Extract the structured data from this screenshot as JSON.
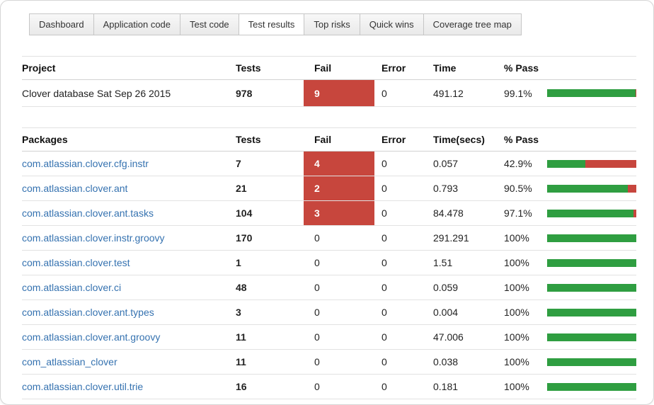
{
  "tabs": [
    {
      "label": "Dashboard"
    },
    {
      "label": "Application code"
    },
    {
      "label": "Test code"
    },
    {
      "label": "Test results"
    },
    {
      "label": "Top risks"
    },
    {
      "label": "Quick wins"
    },
    {
      "label": "Coverage tree map"
    }
  ],
  "active_tab": "Test results",
  "project_table": {
    "headers": {
      "name": "Project",
      "tests": "Tests",
      "fail": "Fail",
      "error": "Error",
      "time": "Time",
      "pass": "% Pass"
    },
    "rows": [
      {
        "name": "Clover database Sat Sep 26 2015",
        "tests": "978",
        "fail": "9",
        "error": "0",
        "time": "491.12",
        "pass": "99.1%",
        "pass_value": 99.1
      }
    ]
  },
  "packages_table": {
    "headers": {
      "name": "Packages",
      "tests": "Tests",
      "fail": "Fail",
      "error": "Error",
      "time": "Time(secs)",
      "pass": "% Pass"
    },
    "rows": [
      {
        "name": "com.atlassian.clover.cfg.instr",
        "tests": "7",
        "fail": "4",
        "error": "0",
        "time": "0.057",
        "pass": "42.9%",
        "pass_value": 42.9
      },
      {
        "name": "com.atlassian.clover.ant",
        "tests": "21",
        "fail": "2",
        "error": "0",
        "time": "0.793",
        "pass": "90.5%",
        "pass_value": 90.5
      },
      {
        "name": "com.atlassian.clover.ant.tasks",
        "tests": "104",
        "fail": "3",
        "error": "0",
        "time": "84.478",
        "pass": "97.1%",
        "pass_value": 97.1
      },
      {
        "name": "com.atlassian.clover.instr.groovy",
        "tests": "170",
        "fail": "0",
        "error": "0",
        "time": "291.291",
        "pass": "100%",
        "pass_value": 100
      },
      {
        "name": "com.atlassian.clover.test",
        "tests": "1",
        "fail": "0",
        "error": "0",
        "time": "1.51",
        "pass": "100%",
        "pass_value": 100
      },
      {
        "name": "com.atlassian.clover.ci",
        "tests": "48",
        "fail": "0",
        "error": "0",
        "time": "0.059",
        "pass": "100%",
        "pass_value": 100
      },
      {
        "name": "com.atlassian.clover.ant.types",
        "tests": "3",
        "fail": "0",
        "error": "0",
        "time": "0.004",
        "pass": "100%",
        "pass_value": 100
      },
      {
        "name": "com.atlassian.clover.ant.groovy",
        "tests": "11",
        "fail": "0",
        "error": "0",
        "time": "47.006",
        "pass": "100%",
        "pass_value": 100
      },
      {
        "name": "com_atlassian_clover",
        "tests": "11",
        "fail": "0",
        "error": "0",
        "time": "0.038",
        "pass": "100%",
        "pass_value": 100
      },
      {
        "name": "com.atlassian.clover.util.trie",
        "tests": "16",
        "fail": "0",
        "error": "0",
        "time": "0.181",
        "pass": "100%",
        "pass_value": 100
      }
    ]
  },
  "colors": {
    "fail_red": "#c7463d",
    "bar_green": "#2f9e41",
    "link_blue": "#3572b0"
  }
}
